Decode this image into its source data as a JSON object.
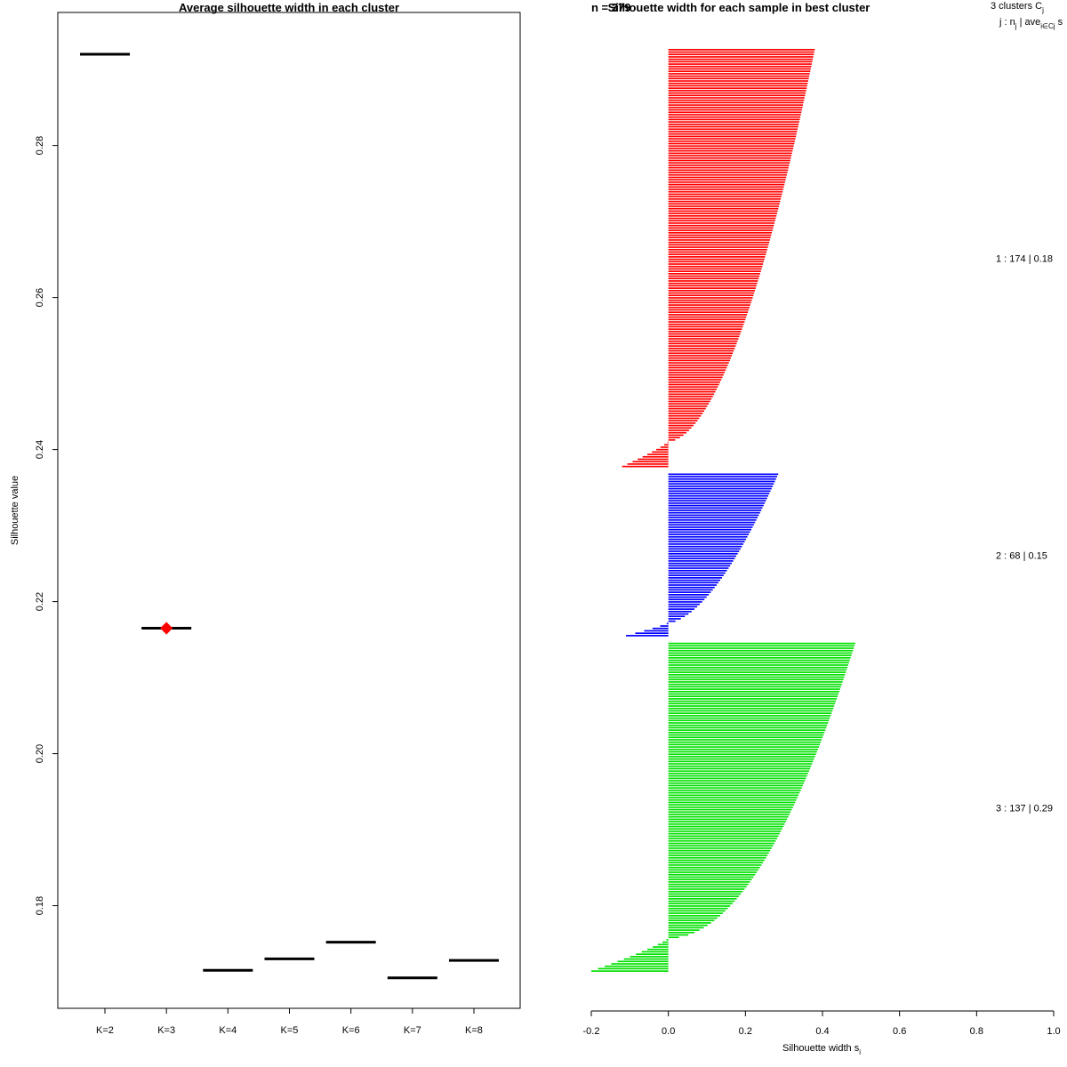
{
  "chart_data": [
    {
      "type": "scatter",
      "title": "Average silhouette width in each cluster",
      "xlabel": "",
      "ylabel": "Silhouette value",
      "categories": [
        "K=2",
        "K=3",
        "K=4",
        "K=5",
        "K=6",
        "K=7",
        "K=8"
      ],
      "values": [
        0.292,
        0.2165,
        0.1715,
        0.173,
        0.1752,
        0.1705,
        0.1728
      ],
      "best": "K=3",
      "best_color": "#ff0000",
      "ylim": [
        0.1665,
        0.2975
      ],
      "yticks": [
        "0.18",
        "0.20",
        "0.22",
        "0.24",
        "0.26",
        "0.28"
      ]
    },
    {
      "type": "bar",
      "orientation": "horizontal",
      "title": "Silhouette width for each sample in best cluster",
      "title_overlap_text": "n = 379",
      "xlabel": "Silhouette width s",
      "xlabel_subscript": "i",
      "xlim": [
        -0.2,
        1.0
      ],
      "xticks": [
        "-0.2",
        "0.0",
        "0.2",
        "0.4",
        "0.6",
        "0.8",
        "1.0"
      ],
      "header": {
        "line1": "3  clusters  C",
        "line1_sub": "j",
        "line2": "j :  n",
        "line2_sub": "j",
        "line2_rest": " | ave",
        "line2_sub2": "i∈Cj",
        "line2_end": " s"
      },
      "clusters": [
        {
          "label": "1 :  174  |  0.18",
          "n": 174,
          "avg": 0.18,
          "color": "#ff0000",
          "max": 0.38,
          "zero_at": 0.94,
          "min": -0.12,
          "exponent": 0.55
        },
        {
          "label": "2 :  68  |  0.15",
          "n": 68,
          "avg": 0.15,
          "color": "#0000ff",
          "max": 0.285,
          "zero_at": 0.92,
          "min": -0.11,
          "exponent": 0.6
        },
        {
          "label": "3 :  137  |  0.29",
          "n": 137,
          "avg": 0.29,
          "color": "#00e000",
          "max": 0.485,
          "zero_at": 0.9,
          "min": -0.2,
          "exponent": 0.5
        }
      ]
    }
  ]
}
